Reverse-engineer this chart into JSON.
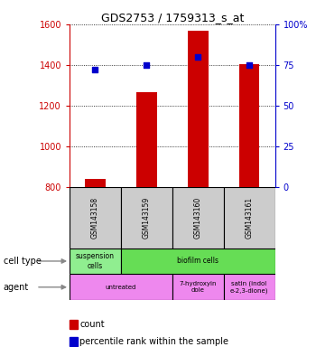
{
  "title": "GDS2753 / 1759313_s_at",
  "samples": [
    "GSM143158",
    "GSM143159",
    "GSM143160",
    "GSM143161"
  ],
  "counts": [
    840,
    1265,
    1570,
    1405
  ],
  "percentiles": [
    72,
    75,
    80,
    75
  ],
  "ylim_left": [
    800,
    1600
  ],
  "ylim_right": [
    0,
    100
  ],
  "yticks_left": [
    800,
    1000,
    1200,
    1400,
    1600
  ],
  "yticks_right": [
    0,
    25,
    50,
    75,
    100
  ],
  "bar_color": "#cc0000",
  "dot_color": "#0000cc",
  "bar_width": 0.4,
  "cell_spans": [
    1,
    3
  ],
  "cell_labels": [
    "suspension\ncells",
    "biofilm cells"
  ],
  "cell_colors": [
    "#90ee90",
    "#66dd55"
  ],
  "agent_spans": [
    2,
    1,
    1
  ],
  "agent_labels": [
    "untreated",
    "7-hydroxyin\ndole",
    "satin (indol\ne-2,3-dione)"
  ],
  "agent_color": "#ee88ee",
  "gsm_bg": "#cccccc",
  "label_cell_type": "cell type",
  "label_agent": "agent",
  "legend_count_label": "count",
  "legend_pct_label": "percentile rank within the sample",
  "title_color": "#000000",
  "left_axis_color": "#cc0000",
  "right_axis_color": "#0000cc"
}
